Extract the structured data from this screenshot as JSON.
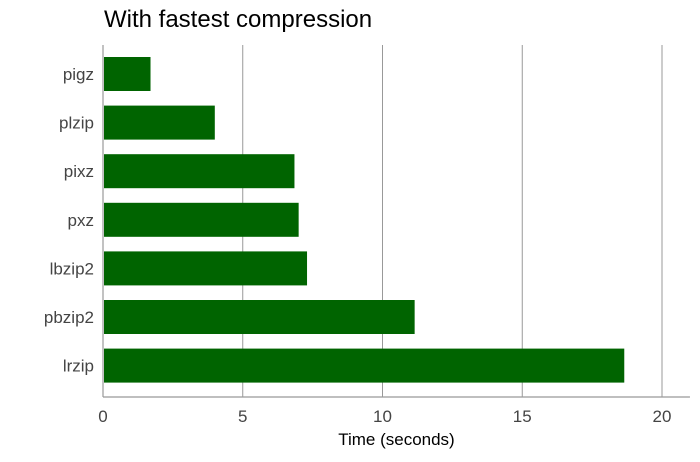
{
  "chart_data": {
    "type": "bar",
    "orientation": "horizontal",
    "title": "With fastest compression",
    "xlabel": "Time (seconds)",
    "ylabel": "",
    "categories": [
      "pigz",
      "plzip",
      "pixz",
      "pxz",
      "lbzip2",
      "pbzip2",
      "lrzip"
    ],
    "values": [
      1.7,
      4.0,
      6.85,
      7.0,
      7.3,
      11.15,
      18.65
    ],
    "xlim": [
      0,
      21
    ],
    "xticks": [
      0,
      5,
      10,
      15,
      20
    ],
    "grid": "vertical",
    "legend": "none"
  },
  "colors": {
    "bar": "#006400",
    "grid": "#999999",
    "axis": "#999999"
  }
}
